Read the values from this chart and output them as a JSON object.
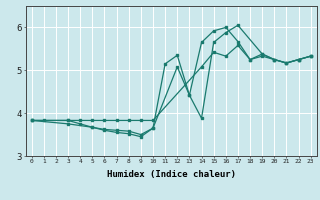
{
  "xlabel": "Humidex (Indice chaleur)",
  "bg_color": "#cce8ec",
  "grid_color": "#ffffff",
  "line_color": "#1a7a6e",
  "xlim": [
    -0.5,
    23.5
  ],
  "ylim": [
    3.0,
    6.5
  ],
  "yticks": [
    3,
    4,
    5,
    6
  ],
  "xticks": [
    0,
    1,
    2,
    3,
    4,
    5,
    6,
    7,
    8,
    9,
    10,
    11,
    12,
    13,
    14,
    15,
    16,
    17,
    18,
    19,
    20,
    21,
    22,
    23
  ],
  "line1_x": [
    0,
    1,
    3,
    4,
    5,
    6,
    7,
    8,
    9,
    10,
    14,
    15,
    16,
    17,
    18,
    19,
    20,
    21,
    22,
    23
  ],
  "line1_y": [
    3.83,
    3.83,
    3.83,
    3.83,
    3.83,
    3.83,
    3.83,
    3.83,
    3.83,
    3.83,
    5.08,
    5.42,
    5.33,
    5.58,
    5.25,
    5.33,
    5.25,
    5.17,
    5.25,
    5.33
  ],
  "line2_x": [
    0,
    3,
    4,
    5,
    6,
    7,
    8,
    9,
    10,
    12,
    13,
    14,
    15,
    16,
    17,
    18,
    19,
    20,
    21,
    22,
    23
  ],
  "line2_y": [
    3.83,
    3.83,
    3.75,
    3.67,
    3.62,
    3.6,
    3.58,
    3.5,
    3.65,
    5.08,
    4.42,
    5.65,
    5.92,
    6.0,
    5.67,
    5.25,
    5.38,
    5.25,
    5.17,
    5.25,
    5.33
  ],
  "line3_x": [
    0,
    3,
    5,
    6,
    7,
    8,
    9,
    10,
    11,
    12,
    13,
    14,
    15,
    16,
    17,
    19,
    20,
    21,
    22,
    23
  ],
  "line3_y": [
    3.83,
    3.75,
    3.67,
    3.6,
    3.55,
    3.52,
    3.45,
    3.65,
    5.15,
    5.35,
    4.42,
    3.88,
    5.65,
    5.88,
    6.05,
    5.38,
    5.25,
    5.17,
    5.25,
    5.33
  ]
}
